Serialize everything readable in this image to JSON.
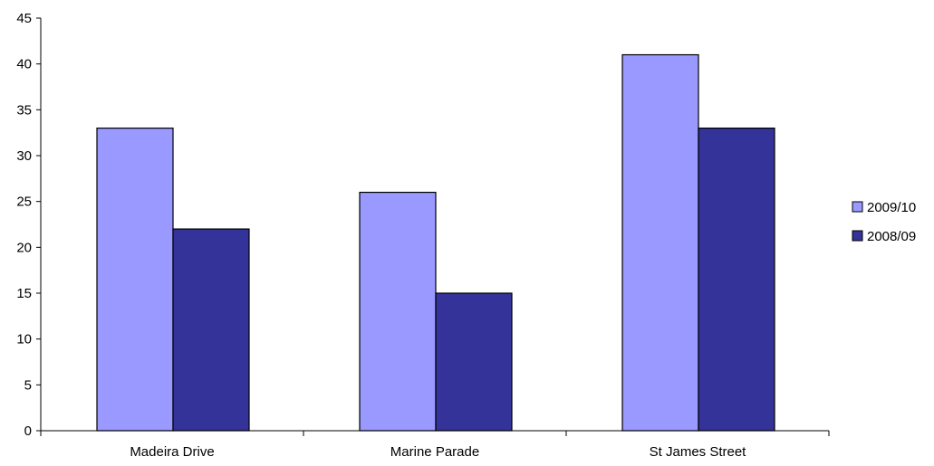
{
  "chart_data": {
    "type": "bar",
    "title": "",
    "xlabel": "",
    "ylabel": "",
    "categories": [
      "Madeira Drive",
      "Marine Parade",
      "St James Street"
    ],
    "series": [
      {
        "name": "2009/10",
        "values": [
          33,
          26,
          41
        ],
        "color": "#9999ff"
      },
      {
        "name": "2008/09",
        "values": [
          22,
          15,
          33
        ],
        "color": "#333399"
      }
    ],
    "ylim": [
      0,
      45
    ],
    "yticks": [
      "0",
      "5",
      "10",
      "15",
      "20",
      "25",
      "30",
      "35",
      "40",
      "45"
    ],
    "grid": false,
    "legend_position": "right"
  }
}
